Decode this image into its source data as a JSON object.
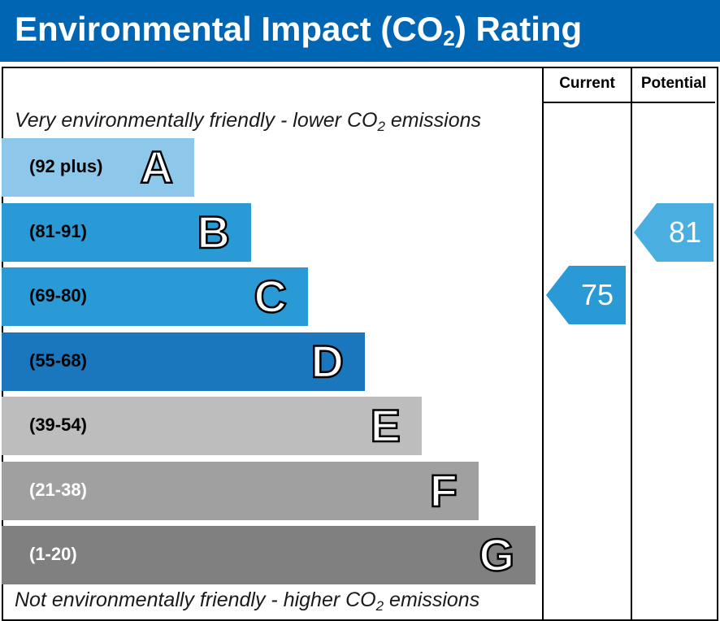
{
  "header": {
    "title_main": "Environmental Impact (CO",
    "title_sub": "2",
    "title_end": ") Rating"
  },
  "columns": {
    "current": "Current",
    "potential": "Potential"
  },
  "captions": {
    "top_main": "Very environmentally friendly - lower CO",
    "top_sub": "2",
    "top_end": " emissions",
    "bottom_main": "Not environmentally friendly - higher CO",
    "bottom_sub": "2",
    "bottom_end": " emissions"
  },
  "chart_data": {
    "type": "bar",
    "bands": [
      {
        "letter": "A",
        "range": "(92 plus)",
        "min": 92,
        "max": 100,
        "color": "#8dc8ea",
        "text_color": "#000000"
      },
      {
        "letter": "B",
        "range": "(81-91)",
        "min": 81,
        "max": 91,
        "color": "#2a9ad7",
        "text_color": "#000000"
      },
      {
        "letter": "C",
        "range": "(69-80)",
        "min": 69,
        "max": 80,
        "color": "#2a9ad7",
        "text_color": "#000000"
      },
      {
        "letter": "D",
        "range": "(55-68)",
        "min": 55,
        "max": 68,
        "color": "#1a77bd",
        "text_color": "#000000"
      },
      {
        "letter": "E",
        "range": "(39-54)",
        "min": 39,
        "max": 54,
        "color": "#bdbdbd",
        "text_color": "#000000"
      },
      {
        "letter": "F",
        "range": "(21-38)",
        "min": 21,
        "max": 38,
        "color": "#a0a0a0",
        "text_color": "#ffffff"
      },
      {
        "letter": "G",
        "range": "(1-20)",
        "min": 1,
        "max": 20,
        "color": "#808080",
        "text_color": "#ffffff"
      }
    ],
    "current": {
      "value": "75",
      "band": "C",
      "color": "#2a9ad7"
    },
    "potential": {
      "value": "81",
      "band": "B",
      "color": "#4aaee0"
    }
  }
}
